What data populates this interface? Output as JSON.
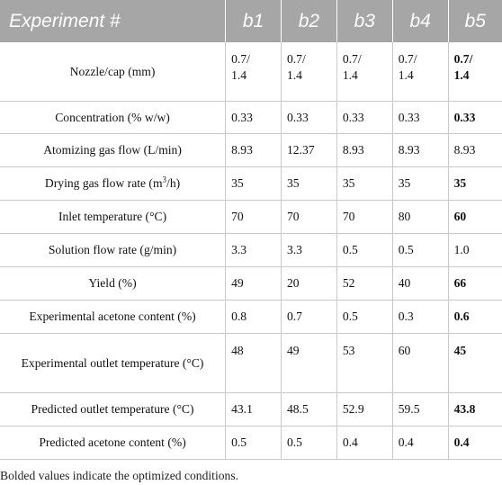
{
  "table": {
    "header": [
      "Experiment #",
      "b1",
      "b2",
      "b3",
      "b4",
      "b5"
    ],
    "rows": [
      {
        "label": "Nozzle/cap (mm)",
        "values": [
          "0.7/\n1.4",
          "0.7/\n1.4",
          "0.7/\n1.4",
          "0.7/\n1.4",
          "0.7/\n1.4"
        ]
      },
      {
        "label": "Concentration (% w/w)",
        "values": [
          "0.33",
          "0.33",
          "0.33",
          "0.33",
          "0.33"
        ]
      },
      {
        "label": "Atomizing gas flow (L/min)",
        "values": [
          "8.93",
          "12.37",
          "8.93",
          "8.93",
          "8.93"
        ]
      },
      {
        "label_pre": "Drying gas flow rate (m",
        "label_sup": "3",
        "label_post": "/h)",
        "values": [
          "35",
          "35",
          "35",
          "35",
          "35"
        ]
      },
      {
        "label": "Inlet temperature (°C)",
        "values": [
          "70",
          "70",
          "70",
          "80",
          "60"
        ]
      },
      {
        "label": "Solution flow rate (g/min)",
        "values": [
          "3.3",
          "3.3",
          "0.5",
          "0.5",
          "1.0"
        ]
      },
      {
        "label": "Yield (%)",
        "values": [
          "49",
          "20",
          "52",
          "40",
          "66"
        ]
      },
      {
        "label": "Experimental acetone content (%)",
        "values": [
          "0.8",
          "0.7",
          "0.5",
          "0.3",
          "0.6"
        ]
      },
      {
        "label": "Experimental outlet temperature (°C)",
        "values": [
          "48",
          "49",
          "53",
          "60",
          "45"
        ]
      },
      {
        "label": "Predicted outlet temperature (°C)",
        "values": [
          "43.1",
          "48.5",
          "52.9",
          "59.5",
          "43.8"
        ]
      },
      {
        "label": "Predicted acetone content (%)",
        "values": [
          "0.5",
          "0.5",
          "0.4",
          "0.4",
          "0.4"
        ]
      }
    ]
  },
  "footnote": "Bolded values indicate the optimized conditions."
}
